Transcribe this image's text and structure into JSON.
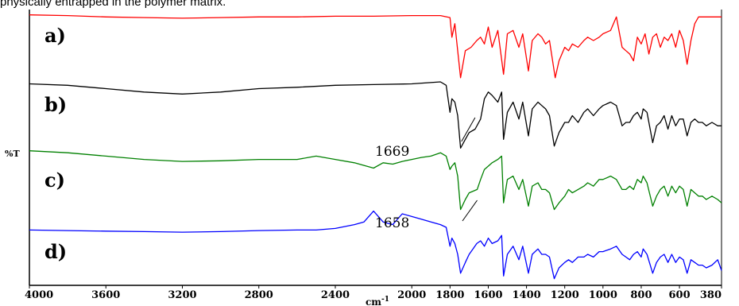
{
  "caption": "physically entrapped in the polymer matrix.",
  "chart_data": {
    "type": "line",
    "xlabel": "cm-1",
    "ylabel": "%T",
    "x_reversed": true,
    "xlim": [
      4000,
      380
    ],
    "x_ticks": [
      4000,
      3600,
      3200,
      2800,
      2400,
      2000,
      1800,
      1600,
      1400,
      1200,
      1000,
      800,
      600,
      380
    ],
    "grid": false,
    "legend": "none",
    "series": [
      {
        "label": "a)",
        "color": "#ff0000",
        "points": [
          [
            4000,
            0.02
          ],
          [
            3800,
            0.03
          ],
          [
            3600,
            0.05
          ],
          [
            3400,
            0.06
          ],
          [
            3200,
            0.07
          ],
          [
            3000,
            0.06
          ],
          [
            2800,
            0.05
          ],
          [
            2600,
            0.05
          ],
          [
            2400,
            0.04
          ],
          [
            2200,
            0.04
          ],
          [
            2000,
            0.03
          ],
          [
            1850,
            0.03
          ],
          [
            1800,
            0.06
          ],
          [
            1790,
            0.35
          ],
          [
            1775,
            0.15
          ],
          [
            1745,
            0.95
          ],
          [
            1720,
            0.55
          ],
          [
            1690,
            0.5
          ],
          [
            1660,
            0.4
          ],
          [
            1640,
            0.35
          ],
          [
            1620,
            0.45
          ],
          [
            1600,
            0.2
          ],
          [
            1580,
            0.5
          ],
          [
            1550,
            0.25
          ],
          [
            1520,
            0.9
          ],
          [
            1500,
            0.3
          ],
          [
            1470,
            0.25
          ],
          [
            1440,
            0.5
          ],
          [
            1420,
            0.3
          ],
          [
            1390,
            0.85
          ],
          [
            1370,
            0.4
          ],
          [
            1340,
            0.3
          ],
          [
            1320,
            0.35
          ],
          [
            1300,
            0.45
          ],
          [
            1280,
            0.4
          ],
          [
            1250,
            0.95
          ],
          [
            1230,
            0.7
          ],
          [
            1200,
            0.5
          ],
          [
            1180,
            0.55
          ],
          [
            1160,
            0.45
          ],
          [
            1130,
            0.5
          ],
          [
            1100,
            0.4
          ],
          [
            1080,
            0.35
          ],
          [
            1050,
            0.4
          ],
          [
            1020,
            0.35
          ],
          [
            1000,
            0.3
          ],
          [
            960,
            0.25
          ],
          [
            930,
            0.05
          ],
          [
            900,
            0.5
          ],
          [
            880,
            0.55
          ],
          [
            860,
            0.6
          ],
          [
            840,
            0.7
          ],
          [
            820,
            0.35
          ],
          [
            800,
            0.45
          ],
          [
            780,
            0.3
          ],
          [
            760,
            0.6
          ],
          [
            740,
            0.35
          ],
          [
            720,
            0.3
          ],
          [
            700,
            0.5
          ],
          [
            680,
            0.35
          ],
          [
            660,
            0.4
          ],
          [
            640,
            0.3
          ],
          [
            620,
            0.5
          ],
          [
            600,
            0.25
          ],
          [
            580,
            0.4
          ],
          [
            560,
            0.75
          ],
          [
            540,
            0.4
          ],
          [
            520,
            0.15
          ],
          [
            500,
            0.05
          ],
          [
            480,
            0.05
          ],
          [
            430,
            0.05
          ],
          [
            380,
            0.05
          ]
        ]
      },
      {
        "label": "b)",
        "color": "#000000",
        "points": [
          [
            4000,
            0.03
          ],
          [
            3800,
            0.05
          ],
          [
            3600,
            0.1
          ],
          [
            3400,
            0.15
          ],
          [
            3200,
            0.18
          ],
          [
            3000,
            0.15
          ],
          [
            2800,
            0.1
          ],
          [
            2600,
            0.08
          ],
          [
            2400,
            0.05
          ],
          [
            2200,
            0.04
          ],
          [
            2000,
            0.03
          ],
          [
            1850,
            0.0
          ],
          [
            1820,
            0.05
          ],
          [
            1800,
            0.45
          ],
          [
            1790,
            0.25
          ],
          [
            1775,
            0.3
          ],
          [
            1760,
            0.5
          ],
          [
            1745,
            0.98
          ],
          [
            1720,
            0.85
          ],
          [
            1700,
            0.75
          ],
          [
            1669,
            0.7
          ],
          [
            1640,
            0.55
          ],
          [
            1620,
            0.25
          ],
          [
            1600,
            0.15
          ],
          [
            1580,
            0.2
          ],
          [
            1550,
            0.3
          ],
          [
            1530,
            0.15
          ],
          [
            1520,
            0.85
          ],
          [
            1500,
            0.45
          ],
          [
            1470,
            0.3
          ],
          [
            1440,
            0.55
          ],
          [
            1420,
            0.3
          ],
          [
            1390,
            0.8
          ],
          [
            1370,
            0.4
          ],
          [
            1340,
            0.3
          ],
          [
            1320,
            0.35
          ],
          [
            1300,
            0.4
          ],
          [
            1280,
            0.5
          ],
          [
            1255,
            0.95
          ],
          [
            1230,
            0.75
          ],
          [
            1200,
            0.6
          ],
          [
            1180,
            0.6
          ],
          [
            1160,
            0.5
          ],
          [
            1130,
            0.6
          ],
          [
            1100,
            0.45
          ],
          [
            1080,
            0.4
          ],
          [
            1050,
            0.5
          ],
          [
            1020,
            0.4
          ],
          [
            1000,
            0.35
          ],
          [
            960,
            0.3
          ],
          [
            930,
            0.35
          ],
          [
            900,
            0.65
          ],
          [
            880,
            0.6
          ],
          [
            860,
            0.6
          ],
          [
            840,
            0.5
          ],
          [
            820,
            0.45
          ],
          [
            800,
            0.55
          ],
          [
            790,
            0.4
          ],
          [
            770,
            0.45
          ],
          [
            740,
            0.9
          ],
          [
            720,
            0.65
          ],
          [
            700,
            0.6
          ],
          [
            680,
            0.5
          ],
          [
            660,
            0.7
          ],
          [
            640,
            0.5
          ],
          [
            620,
            0.65
          ],
          [
            600,
            0.55
          ],
          [
            580,
            0.55
          ],
          [
            560,
            0.8
          ],
          [
            540,
            0.6
          ],
          [
            520,
            0.55
          ],
          [
            500,
            0.6
          ],
          [
            480,
            0.6
          ],
          [
            460,
            0.65
          ],
          [
            430,
            0.6
          ],
          [
            400,
            0.65
          ],
          [
            380,
            0.65
          ]
        ]
      },
      {
        "label": "c)",
        "color": "#008000",
        "points": [
          [
            4000,
            0.02
          ],
          [
            3800,
            0.05
          ],
          [
            3600,
            0.1
          ],
          [
            3400,
            0.15
          ],
          [
            3200,
            0.18
          ],
          [
            3000,
            0.17
          ],
          [
            2800,
            0.15
          ],
          [
            2600,
            0.15
          ],
          [
            2500,
            0.1
          ],
          [
            2400,
            0.15
          ],
          [
            2300,
            0.2
          ],
          [
            2200,
            0.28
          ],
          [
            2150,
            0.2
          ],
          [
            2100,
            0.22
          ],
          [
            2050,
            0.18
          ],
          [
            2000,
            0.15
          ],
          [
            1950,
            0.12
          ],
          [
            1900,
            0.1
          ],
          [
            1850,
            0.05
          ],
          [
            1820,
            0.1
          ],
          [
            1800,
            0.3
          ],
          [
            1790,
            0.25
          ],
          [
            1775,
            0.2
          ],
          [
            1760,
            0.4
          ],
          [
            1745,
            0.9
          ],
          [
            1720,
            0.75
          ],
          [
            1700,
            0.65
          ],
          [
            1658,
            0.6
          ],
          [
            1640,
            0.45
          ],
          [
            1620,
            0.3
          ],
          [
            1600,
            0.25
          ],
          [
            1580,
            0.2
          ],
          [
            1550,
            0.15
          ],
          [
            1530,
            0.1
          ],
          [
            1520,
            0.8
          ],
          [
            1500,
            0.45
          ],
          [
            1470,
            0.4
          ],
          [
            1440,
            0.6
          ],
          [
            1420,
            0.45
          ],
          [
            1390,
            0.85
          ],
          [
            1370,
            0.55
          ],
          [
            1340,
            0.5
          ],
          [
            1320,
            0.6
          ],
          [
            1300,
            0.6
          ],
          [
            1280,
            0.65
          ],
          [
            1255,
            0.9
          ],
          [
            1230,
            0.8
          ],
          [
            1200,
            0.7
          ],
          [
            1180,
            0.6
          ],
          [
            1160,
            0.65
          ],
          [
            1130,
            0.6
          ],
          [
            1100,
            0.55
          ],
          [
            1080,
            0.5
          ],
          [
            1050,
            0.55
          ],
          [
            1020,
            0.45
          ],
          [
            1000,
            0.45
          ],
          [
            960,
            0.4
          ],
          [
            930,
            0.45
          ],
          [
            900,
            0.6
          ],
          [
            880,
            0.6
          ],
          [
            860,
            0.55
          ],
          [
            840,
            0.6
          ],
          [
            820,
            0.45
          ],
          [
            800,
            0.5
          ],
          [
            790,
            0.4
          ],
          [
            770,
            0.5
          ],
          [
            740,
            0.85
          ],
          [
            720,
            0.7
          ],
          [
            700,
            0.6
          ],
          [
            680,
            0.55
          ],
          [
            660,
            0.7
          ],
          [
            640,
            0.55
          ],
          [
            620,
            0.65
          ],
          [
            600,
            0.55
          ],
          [
            580,
            0.6
          ],
          [
            560,
            0.85
          ],
          [
            540,
            0.6
          ],
          [
            520,
            0.65
          ],
          [
            500,
            0.7
          ],
          [
            480,
            0.7
          ],
          [
            460,
            0.75
          ],
          [
            430,
            0.7
          ],
          [
            400,
            0.75
          ],
          [
            380,
            0.8
          ]
        ]
      },
      {
        "label": "d)",
        "color": "#0000ff",
        "points": [
          [
            4000,
            0.05
          ],
          [
            3800,
            0.06
          ],
          [
            3600,
            0.07
          ],
          [
            3400,
            0.08
          ],
          [
            3200,
            0.09
          ],
          [
            3000,
            0.08
          ],
          [
            2800,
            0.06
          ],
          [
            2600,
            0.05
          ],
          [
            2500,
            0.05
          ],
          [
            2400,
            0.02
          ],
          [
            2300,
            -0.05
          ],
          [
            2250,
            -0.1
          ],
          [
            2200,
            -0.3
          ],
          [
            2150,
            -0.1
          ],
          [
            2100,
            -0.05
          ],
          [
            2050,
            -0.25
          ],
          [
            2000,
            -0.2
          ],
          [
            1950,
            -0.15
          ],
          [
            1900,
            -0.1
          ],
          [
            1850,
            -0.05
          ],
          [
            1820,
            0.0
          ],
          [
            1800,
            0.35
          ],
          [
            1790,
            0.2
          ],
          [
            1775,
            0.3
          ],
          [
            1760,
            0.5
          ],
          [
            1745,
            0.85
          ],
          [
            1720,
            0.65
          ],
          [
            1700,
            0.5
          ],
          [
            1680,
            0.4
          ],
          [
            1660,
            0.3
          ],
          [
            1640,
            0.25
          ],
          [
            1620,
            0.35
          ],
          [
            1600,
            0.2
          ],
          [
            1580,
            0.3
          ],
          [
            1550,
            0.25
          ],
          [
            1530,
            0.15
          ],
          [
            1520,
            0.9
          ],
          [
            1500,
            0.5
          ],
          [
            1470,
            0.35
          ],
          [
            1440,
            0.6
          ],
          [
            1420,
            0.35
          ],
          [
            1390,
            0.85
          ],
          [
            1370,
            0.5
          ],
          [
            1340,
            0.4
          ],
          [
            1320,
            0.5
          ],
          [
            1300,
            0.5
          ],
          [
            1280,
            0.55
          ],
          [
            1255,
            0.95
          ],
          [
            1230,
            0.75
          ],
          [
            1200,
            0.65
          ],
          [
            1180,
            0.6
          ],
          [
            1160,
            0.65
          ],
          [
            1130,
            0.55
          ],
          [
            1100,
            0.55
          ],
          [
            1080,
            0.5
          ],
          [
            1050,
            0.55
          ],
          [
            1020,
            0.45
          ],
          [
            1000,
            0.45
          ],
          [
            960,
            0.4
          ],
          [
            930,
            0.35
          ],
          [
            900,
            0.5
          ],
          [
            880,
            0.55
          ],
          [
            860,
            0.6
          ],
          [
            840,
            0.5
          ],
          [
            820,
            0.45
          ],
          [
            800,
            0.55
          ],
          [
            790,
            0.4
          ],
          [
            770,
            0.5
          ],
          [
            740,
            0.85
          ],
          [
            720,
            0.65
          ],
          [
            700,
            0.55
          ],
          [
            680,
            0.5
          ],
          [
            660,
            0.65
          ],
          [
            640,
            0.5
          ],
          [
            620,
            0.65
          ],
          [
            600,
            0.55
          ],
          [
            580,
            0.6
          ],
          [
            560,
            0.85
          ],
          [
            540,
            0.6
          ],
          [
            520,
            0.65
          ],
          [
            500,
            0.7
          ],
          [
            480,
            0.7
          ],
          [
            460,
            0.75
          ],
          [
            430,
            0.7
          ],
          [
            400,
            0.6
          ],
          [
            380,
            0.8
          ]
        ]
      }
    ],
    "annotations": [
      {
        "text": "1669",
        "series": "b)",
        "x": 1669
      },
      {
        "text": "1658",
        "series": "c)",
        "x": 1658
      }
    ]
  }
}
